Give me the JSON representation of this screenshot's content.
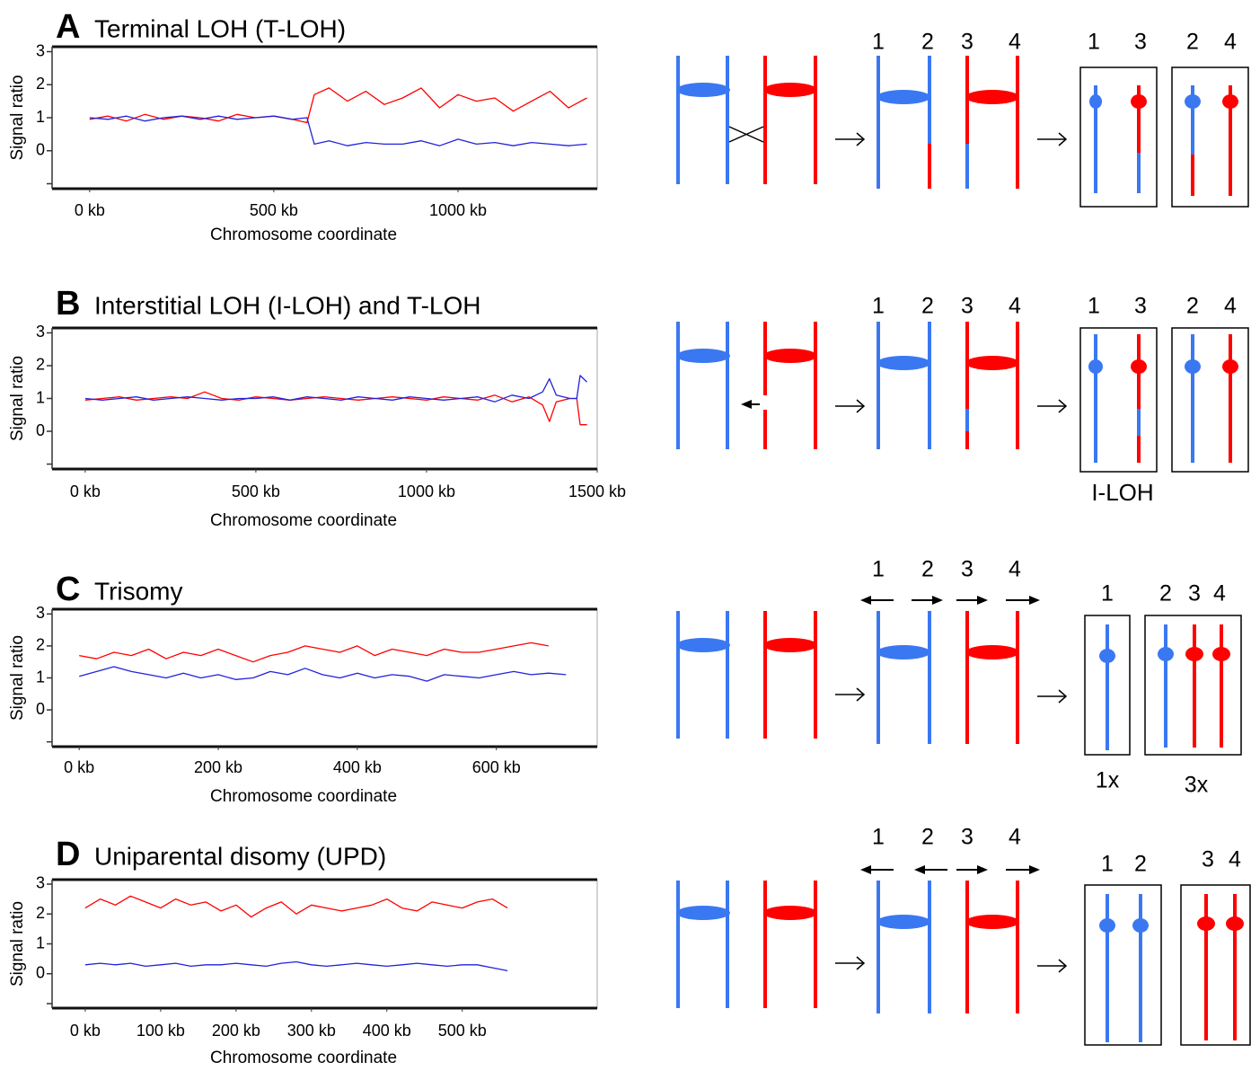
{
  "chart_data": [
    {
      "type": "line",
      "panel": "A",
      "title": "Terminal LOH (T-LOH)",
      "y_label": "Signal ratio",
      "x_label": "Chromosome coordinate",
      "xlim": [
        -102,
        1378
      ],
      "xticks": [
        {
          "value": 0,
          "label": "0 kb"
        },
        {
          "value": 500,
          "label": "500 kb"
        },
        {
          "value": 1000,
          "label": "1000 kb"
        }
      ],
      "ylim": [
        -1.15,
        3.15
      ],
      "yticks": [
        {
          "value": -1,
          "label": null
        },
        0,
        1,
        2,
        3
      ],
      "x": [
        0,
        50,
        100,
        150,
        200,
        250,
        300,
        350,
        400,
        450,
        500,
        550,
        590,
        610,
        650,
        700,
        750,
        800,
        850,
        900,
        950,
        1000,
        1050,
        1100,
        1150,
        1200,
        1250,
        1300,
        1350
      ],
      "series": [
        {
          "color": "#ff0000",
          "values": [
            0.95,
            1.05,
            0.9,
            1.1,
            0.95,
            1.05,
            1.0,
            0.9,
            1.1,
            1.0,
            1.05,
            0.95,
            0.85,
            1.7,
            1.9,
            1.5,
            1.8,
            1.4,
            1.6,
            1.9,
            1.3,
            1.7,
            1.5,
            1.6,
            1.2,
            1.5,
            1.8,
            1.3,
            1.6
          ]
        },
        {
          "color": "#2222dd",
          "values": [
            1.0,
            0.95,
            1.05,
            0.9,
            1.0,
            1.05,
            0.95,
            1.05,
            0.95,
            1.0,
            1.05,
            0.95,
            1.0,
            0.2,
            0.3,
            0.15,
            0.25,
            0.2,
            0.2,
            0.3,
            0.15,
            0.35,
            0.2,
            0.25,
            0.15,
            0.25,
            0.2,
            0.15,
            0.2
          ]
        }
      ]
    },
    {
      "type": "line",
      "panel": "B",
      "title": "Interstitial LOH (I-LOH) and T-LOH",
      "y_label": "Signal ratio",
      "x_label": "Chromosome coordinate",
      "xlim": [
        -97,
        1500
      ],
      "xticks": [
        {
          "value": 0,
          "label": "0 kb"
        },
        {
          "value": 500,
          "label": "500 kb"
        },
        {
          "value": 1000,
          "label": "1000 kb"
        },
        {
          "value": 1500,
          "label": "1500 kb"
        }
      ],
      "ylim": [
        -1.15,
        3.15
      ],
      "yticks": [
        {
          "value": -1,
          "label": null
        },
        0,
        1,
        2,
        3
      ],
      "x": [
        0,
        50,
        100,
        150,
        200,
        250,
        300,
        350,
        400,
        450,
        500,
        550,
        600,
        650,
        700,
        750,
        800,
        850,
        900,
        950,
        1000,
        1050,
        1100,
        1150,
        1200,
        1250,
        1300,
        1340,
        1360,
        1380,
        1420,
        1440,
        1450,
        1460,
        1470
      ],
      "series": [
        {
          "color": "#ff0000",
          "values": [
            0.95,
            1.0,
            1.05,
            0.95,
            1.0,
            1.05,
            1.0,
            1.2,
            1.0,
            0.95,
            1.05,
            1.0,
            0.95,
            1.0,
            1.05,
            1.0,
            0.95,
            1.0,
            1.05,
            1.0,
            0.95,
            1.05,
            1.0,
            0.95,
            1.1,
            0.9,
            1.05,
            0.8,
            0.3,
            0.9,
            1.0,
            1.0,
            0.2,
            0.2,
            0.2
          ]
        },
        {
          "color": "#2222dd",
          "values": [
            1.0,
            0.95,
            1.0,
            1.05,
            0.95,
            1.0,
            1.05,
            1.0,
            0.95,
            1.0,
            1.0,
            1.05,
            0.95,
            1.05,
            1.0,
            0.95,
            1.05,
            1.0,
            0.95,
            1.05,
            1.0,
            0.95,
            1.0,
            1.05,
            0.9,
            1.1,
            1.0,
            1.2,
            1.6,
            1.1,
            1.0,
            1.0,
            1.7,
            1.6,
            1.5
          ]
        }
      ]
    },
    {
      "type": "line",
      "panel": "C",
      "title": "Trisomy",
      "y_label": "Signal ratio",
      "x_label": "Chromosome coordinate",
      "xlim": [
        -39,
        745
      ],
      "xticks": [
        {
          "value": 0,
          "label": "0 kb"
        },
        {
          "value": 200,
          "label": "200 kb"
        },
        {
          "value": 400,
          "label": "400 kb"
        },
        {
          "value": 600,
          "label": "600 kb"
        }
      ],
      "ylim": [
        -1.15,
        3.15
      ],
      "yticks": [
        {
          "value": -1,
          "label": null
        },
        0,
        1,
        2,
        3
      ],
      "x": [
        0,
        25,
        50,
        75,
        100,
        125,
        150,
        175,
        200,
        225,
        250,
        275,
        300,
        325,
        350,
        375,
        400,
        425,
        450,
        475,
        500,
        525,
        550,
        575,
        600,
        625,
        650,
        675,
        700
      ],
      "series": [
        {
          "color": "#ff0000",
          "values": [
            1.7,
            1.6,
            1.8,
            1.7,
            1.9,
            1.6,
            1.8,
            1.7,
            1.9,
            1.7,
            1.5,
            1.7,
            1.8,
            2.0,
            1.9,
            1.8,
            2.0,
            1.7,
            1.9,
            1.8,
            1.7,
            1.9,
            1.8,
            1.8,
            1.9,
            2.0,
            2.1,
            2.0,
            null
          ]
        },
        {
          "color": "#2222dd",
          "values": [
            1.05,
            1.2,
            1.35,
            1.2,
            1.1,
            1.0,
            1.15,
            1.0,
            1.1,
            0.95,
            1.0,
            1.2,
            1.1,
            1.3,
            1.1,
            1.0,
            1.15,
            1.0,
            1.1,
            1.05,
            0.9,
            1.1,
            1.05,
            1.0,
            1.1,
            1.2,
            1.1,
            1.15,
            1.1
          ]
        }
      ]
    },
    {
      "type": "line",
      "panel": "D",
      "title": "Uniparental disomy (UPD)",
      "y_label": "Signal ratio",
      "x_label": "Chromosome coordinate",
      "xlim": [
        -44,
        679
      ],
      "xticks": [
        {
          "value": 0,
          "label": "0 kb"
        },
        {
          "value": 100,
          "label": "100 kb"
        },
        {
          "value": 200,
          "label": "200 kb"
        },
        {
          "value": 300,
          "label": "300 kb"
        },
        {
          "value": 400,
          "label": "400 kb"
        },
        {
          "value": 500,
          "label": "500 kb"
        }
      ],
      "ylim": [
        -1.15,
        3.15
      ],
      "yticks": [
        {
          "value": -1,
          "label": null
        },
        0,
        1,
        2,
        3
      ],
      "x": [
        0,
        20,
        40,
        60,
        80,
        100,
        120,
        140,
        160,
        180,
        200,
        220,
        240,
        260,
        280,
        300,
        320,
        340,
        360,
        380,
        400,
        420,
        440,
        460,
        480,
        500,
        520,
        540,
        560
      ],
      "series": [
        {
          "color": "#ff0000",
          "values": [
            2.2,
            2.5,
            2.3,
            2.6,
            2.4,
            2.2,
            2.5,
            2.3,
            2.4,
            2.1,
            2.3,
            1.9,
            2.2,
            2.4,
            2.0,
            2.3,
            2.2,
            2.1,
            2.2,
            2.3,
            2.5,
            2.2,
            2.1,
            2.4,
            2.3,
            2.2,
            2.4,
            2.5,
            2.2
          ]
        },
        {
          "color": "#2222dd",
          "values": [
            0.3,
            0.35,
            0.3,
            0.35,
            0.25,
            0.3,
            0.35,
            0.25,
            0.3,
            0.3,
            0.35,
            0.3,
            0.25,
            0.35,
            0.4,
            0.3,
            0.25,
            0.3,
            0.35,
            0.3,
            0.25,
            0.3,
            0.35,
            0.3,
            0.25,
            0.3,
            0.3,
            0.2,
            0.1
          ]
        }
      ]
    }
  ],
  "diagrams": [
    {
      "chromatid_labels": [
        "1",
        "2",
        "3",
        "4"
      ],
      "product_labels": [
        "1",
        "3",
        "2",
        "4"
      ]
    },
    {
      "chromatid_labels": [
        "1",
        "2",
        "3",
        "4"
      ],
      "product_labels": [
        "1",
        "3",
        "2",
        "4"
      ],
      "captions": [
        "I-LOH"
      ]
    },
    {
      "chromatid_labels": [
        "1",
        "2",
        "3",
        "4"
      ],
      "product_labels": [
        "1",
        "2",
        "3",
        "4"
      ],
      "captions": [
        "1x",
        "3x"
      ]
    },
    {
      "chromatid_labels": [
        "1",
        "2",
        "3",
        "4"
      ],
      "product_labels": [
        "1",
        "2",
        "3",
        "4"
      ]
    }
  ]
}
